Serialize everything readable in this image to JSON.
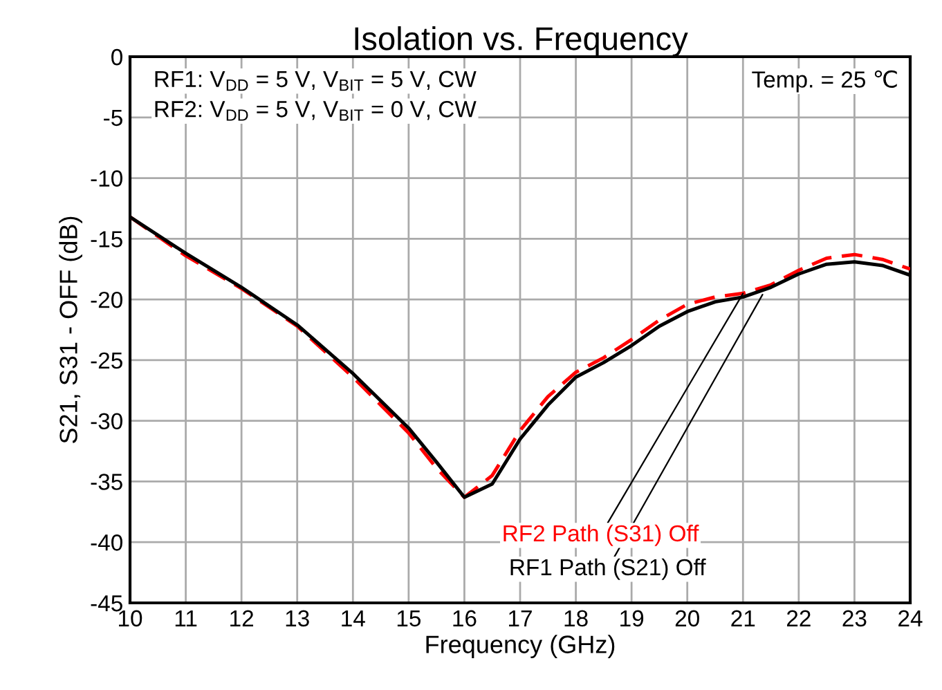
{
  "chart_data": {
    "type": "line",
    "title": "Isolation vs. Frequency",
    "xlabel": "Frequency (GHz)",
    "ylabel": "S21, S31 - OFF (dB)",
    "xlim": [
      10,
      24
    ],
    "xticks": [
      10,
      11,
      12,
      13,
      14,
      15,
      16,
      17,
      18,
      19,
      20,
      21,
      22,
      23,
      24
    ],
    "ylim": [
      -45,
      0
    ],
    "yticks": [
      -45,
      -40,
      -35,
      -30,
      -25,
      -20,
      -15,
      -10,
      -5,
      0
    ],
    "grid": true,
    "marker": "none",
    "x": [
      10,
      11,
      12,
      13,
      14,
      15,
      15.5,
      16,
      16.5,
      17,
      17.5,
      18,
      18.5,
      19,
      19.5,
      20,
      20.5,
      21,
      21.5,
      22,
      22.5,
      23,
      23.5,
      24
    ],
    "series": [
      {
        "color": "#ff0000",
        "line_style": "dashed",
        "values": [
          -13.2,
          -16.4,
          -19.1,
          -22.2,
          -26.4,
          -31.0,
          -33.9,
          -36.3,
          -34.5,
          -30.8,
          -28.0,
          -26.0,
          -24.8,
          -23.3,
          -21.7,
          -20.4,
          -19.8,
          -19.5,
          -18.8,
          -17.6,
          -16.6,
          -16.3,
          -16.7,
          -17.5
        ]
      },
      {
        "color": "#000000",
        "line_style": "solid",
        "values": [
          -13.2,
          -16.2,
          -19.0,
          -22.1,
          -26.1,
          -30.6,
          -33.4,
          -36.3,
          -35.2,
          -31.5,
          -28.7,
          -26.4,
          -25.2,
          -23.8,
          -22.2,
          -21.0,
          -20.2,
          -19.8,
          -19.0,
          -17.9,
          -17.1,
          -16.9,
          -17.2,
          -18.0
        ]
      }
    ],
    "annotations": [
      {
        "text": "RF2 Path (S31) Off",
        "x": 21.0,
        "y": -19.5
      },
      {
        "text": "RF1 Path (S21) Off",
        "x": 21.35,
        "y": -19.6
      },
      "RF1: V$_{DD}$ = 5 V, V$_{BIT}$ = 5 V, CW",
      "RF2: V$_{DD}$ = 5 V, V$_{BIT}$ = 0 V, CW",
      "Temp. = 25 ℃"
    ]
  }
}
